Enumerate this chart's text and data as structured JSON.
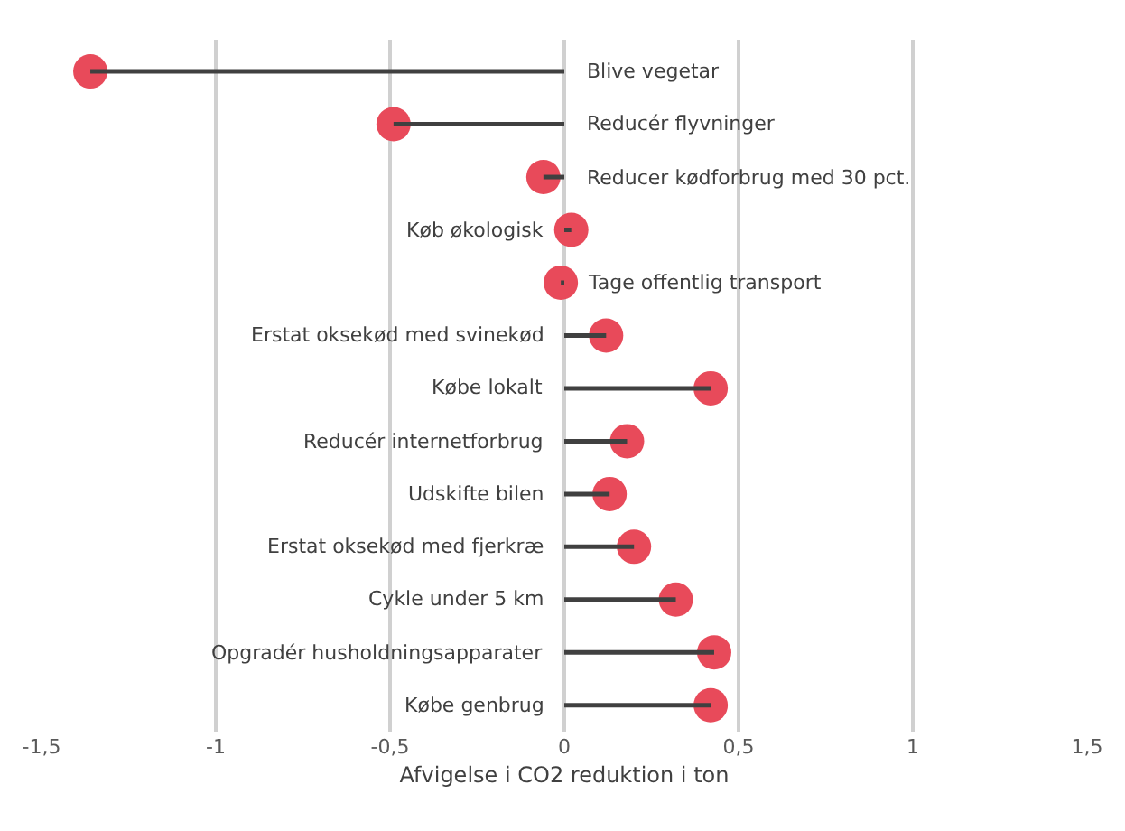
{
  "chart_data": {
    "type": "lollipop",
    "orientation": "horizontal",
    "xlabel": "Afvigelse i CO2 reduktion i ton",
    "categories": [
      "Blive vegetar",
      "Reducér flyvninger",
      "Reducer kødforbrug med 30 pct.",
      "Køb økologisk",
      "Tage offentlig transport",
      "Erstat oksekød med svinekød",
      "Købe lokalt",
      "Reducér internetforbrug",
      "Udskifte bilen",
      "Erstat oksekød med fjerkræ",
      "Cykle under 5 km",
      "Opgradér husholdningsapparater",
      "Købe genbrug"
    ],
    "series": [
      {
        "color": "#e84a5a",
        "values": [
          -1.36,
          -0.49,
          -0.06,
          0.02,
          -0.01,
          0.12,
          0.42,
          0.18,
          0.13,
          0.2,
          0.32,
          0.43,
          0.42
        ]
      }
    ],
    "xlim": [
      -1.5,
      1.5
    ],
    "xticks": [
      {
        "value": -1.5,
        "label": "-1,5"
      },
      -1,
      {
        "value": -0.5,
        "label": "-0,5"
      },
      0,
      {
        "value": 0.5,
        "label": "0,5"
      },
      1,
      {
        "value": 1.5,
        "label": "1,5"
      }
    ],
    "grid": "x",
    "marker": "circle"
  }
}
